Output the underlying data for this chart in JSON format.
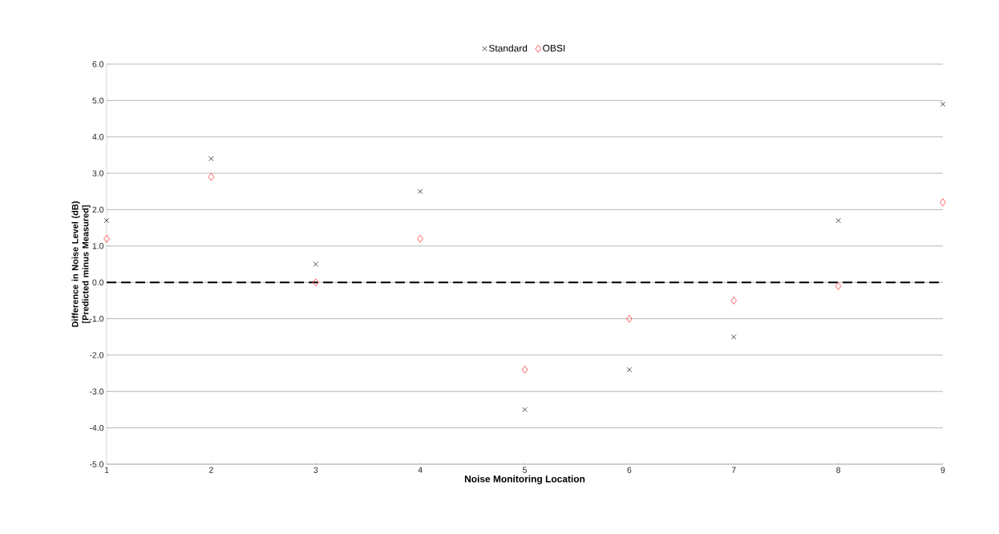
{
  "chart_data": {
    "type": "scatter",
    "xlabel": "Noise Monitoring Location",
    "ylabel": "Difference in Noise Level (dB) [Predicted minus Measured]",
    "x": [
      1,
      2,
      3,
      4,
      5,
      6,
      7,
      8,
      9
    ],
    "series": [
      {
        "name": "Standard",
        "color": "#404040",
        "marker": "cross",
        "values": [
          1.7,
          3.4,
          0.5,
          2.5,
          -3.5,
          -2.4,
          -1.5,
          1.7,
          4.9
        ]
      },
      {
        "name": "OBSI",
        "color": "#ff4d4d",
        "marker": "diamond",
        "values": [
          1.2,
          2.9,
          0.0,
          1.2,
          -2.4,
          -1.0,
          -0.5,
          -0.1,
          2.2
        ]
      }
    ],
    "xlim": [
      1,
      9
    ],
    "xticks": [
      1,
      2,
      3,
      4,
      5,
      6,
      7,
      8,
      9
    ],
    "ylim": [
      -5,
      6
    ],
    "yticks": [
      {
        "value": -5,
        "label": "-5.0"
      },
      {
        "value": -4,
        "label": "-4.0"
      },
      {
        "value": -3,
        "label": "-3.0"
      },
      {
        "value": -2,
        "label": "-2.0"
      },
      {
        "value": -1,
        "label": "-1.0"
      },
      {
        "value": 0,
        "label": "0.0"
      },
      {
        "value": 1,
        "label": "1.0"
      },
      {
        "value": 2,
        "label": "2.0"
      },
      {
        "value": 3,
        "label": "3.0"
      },
      {
        "value": 4,
        "label": "4.0"
      },
      {
        "value": 5,
        "label": "5.0"
      },
      {
        "value": 6,
        "label": "6.0"
      }
    ],
    "ref_lines": [
      {
        "axis": "y",
        "value": 0,
        "color": "#000000",
        "line_style": "dashed"
      }
    ],
    "grid": "y",
    "legend": "top"
  }
}
